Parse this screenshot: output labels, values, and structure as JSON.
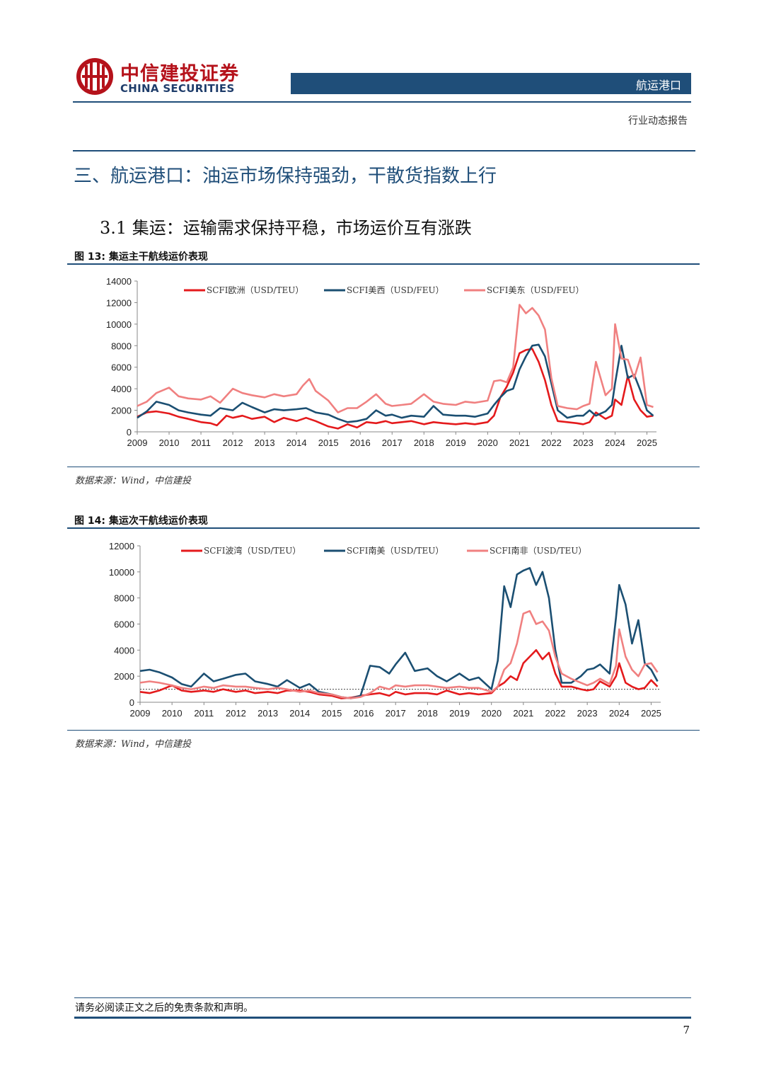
{
  "header": {
    "brand_cn": "中信建投证券",
    "brand_en": "CHINA SECURITIES",
    "sector": "航运港口",
    "report_type": "行业动态报告",
    "brand_color": "#b5121b",
    "accent_color": "#1f4e79"
  },
  "section_title": "三、航运港口：油运市场保持强劲，干散货指数上行",
  "subsection_title": "3.1 集运：运输需求保持平稳，市场运价互有涨跌",
  "figures": [
    {
      "title": "图 13: 集运主干航线运价表现",
      "source": "数据来源：Wind，中信建投"
    },
    {
      "title": "图 14: 集运次干航线运价表现",
      "source": "数据来源：Wind，中信建投"
    }
  ],
  "chart_data": [
    {
      "type": "line",
      "title": "",
      "xlabel": "",
      "ylabel": "",
      "x_ticks": [
        "2009",
        "2010",
        "2011",
        "2012",
        "2013",
        "2014",
        "2015",
        "2016",
        "2017",
        "2018",
        "2019",
        "2020",
        "2021",
        "2022",
        "2023",
        "2024",
        "2025"
      ],
      "y_ticks": [
        0,
        2000,
        4000,
        6000,
        8000,
        10000,
        12000,
        14000
      ],
      "xlim": [
        2009,
        2025.3
      ],
      "ylim": [
        0,
        14000
      ],
      "legend_position": "top",
      "series": [
        {
          "name": "SCFI欧洲（USD/TEU）",
          "color": "#e41a1c",
          "x": [
            2009,
            2009.3,
            2009.6,
            2010,
            2010.3,
            2010.6,
            2011,
            2011.3,
            2011.5,
            2011.8,
            2012,
            2012.3,
            2012.6,
            2013,
            2013.3,
            2013.6,
            2014,
            2014.3,
            2014.6,
            2015,
            2015.3,
            2015.6,
            2015.9,
            2016.2,
            2016.5,
            2016.8,
            2017,
            2017.3,
            2017.6,
            2018,
            2018.3,
            2018.6,
            2019,
            2019.3,
            2019.6,
            2020,
            2020.2,
            2020.4,
            2020.6,
            2020.8,
            2021,
            2021.2,
            2021.4,
            2021.6,
            2021.8,
            2022,
            2022.2,
            2022.5,
            2022.8,
            2023,
            2023.2,
            2023.4,
            2023.7,
            2023.9,
            2024,
            2024.2,
            2024.4,
            2024.6,
            2024.8,
            2025,
            2025.2
          ],
          "y": [
            1400,
            1800,
            1900,
            1700,
            1400,
            1200,
            900,
            800,
            600,
            1500,
            1300,
            1500,
            1200,
            1400,
            900,
            1300,
            1000,
            1300,
            1000,
            500,
            300,
            700,
            400,
            900,
            800,
            1000,
            800,
            900,
            1000,
            700,
            900,
            800,
            700,
            800,
            700,
            900,
            1500,
            3200,
            4200,
            5500,
            7300,
            7600,
            7700,
            6500,
            4800,
            2500,
            1000,
            900,
            800,
            700,
            900,
            1800,
            1200,
            1500,
            3000,
            2500,
            5200,
            3000,
            2000,
            1400,
            1500
          ]
        },
        {
          "name": "SCFI美西（USD/FEU）",
          "color": "#1b4f72",
          "x": [
            2009,
            2009.3,
            2009.6,
            2010,
            2010.3,
            2010.6,
            2011,
            2011.3,
            2011.6,
            2012,
            2012.3,
            2012.6,
            2013,
            2013.3,
            2013.6,
            2014,
            2014.3,
            2014.6,
            2015,
            2015.3,
            2015.6,
            2015.9,
            2016.2,
            2016.5,
            2016.8,
            2017,
            2017.3,
            2017.6,
            2018,
            2018.3,
            2018.6,
            2019,
            2019.3,
            2019.6,
            2020,
            2020.2,
            2020.4,
            2020.6,
            2020.8,
            2021,
            2021.2,
            2021.4,
            2021.6,
            2021.8,
            2022,
            2022.2,
            2022.5,
            2022.8,
            2023,
            2023.2,
            2023.4,
            2023.7,
            2023.9,
            2024,
            2024.2,
            2024.4,
            2024.6,
            2024.8,
            2025,
            2025.2
          ],
          "y": [
            1300,
            1900,
            2800,
            2500,
            2000,
            1800,
            1600,
            1500,
            2200,
            2000,
            2700,
            2300,
            1800,
            2100,
            2000,
            2100,
            2200,
            1800,
            1600,
            1200,
            900,
            1000,
            1200,
            2000,
            1500,
            1600,
            1300,
            1500,
            1400,
            2400,
            1600,
            1500,
            1500,
            1400,
            1700,
            2500,
            3200,
            3800,
            4000,
            5800,
            7000,
            8000,
            8100,
            7000,
            4500,
            2000,
            1300,
            1500,
            1500,
            2000,
            1500,
            1900,
            2500,
            4500,
            8000,
            5000,
            5300,
            3800,
            2000,
            1500
          ]
        },
        {
          "name": "SCFI美东（USD/FEU）",
          "color": "#f08080",
          "x": [
            2009,
            2009.3,
            2009.6,
            2010,
            2010.3,
            2010.6,
            2011,
            2011.3,
            2011.6,
            2012,
            2012.3,
            2012.6,
            2013,
            2013.3,
            2013.6,
            2014,
            2014.2,
            2014.4,
            2014.6,
            2015,
            2015.3,
            2015.6,
            2015.9,
            2016.2,
            2016.5,
            2016.8,
            2017,
            2017.3,
            2017.6,
            2018,
            2018.3,
            2018.6,
            2019,
            2019.3,
            2019.6,
            2020,
            2020.2,
            2020.4,
            2020.6,
            2020.8,
            2021,
            2021.2,
            2021.4,
            2021.6,
            2021.8,
            2022,
            2022.2,
            2022.5,
            2022.8,
            2023,
            2023.2,
            2023.4,
            2023.7,
            2023.9,
            2024,
            2024.2,
            2024.4,
            2024.6,
            2024.8,
            2025,
            2025.2
          ],
          "y": [
            2400,
            2800,
            3600,
            4100,
            3300,
            3100,
            3000,
            3300,
            2700,
            4000,
            3600,
            3400,
            3200,
            3500,
            3300,
            3500,
            4300,
            4900,
            3800,
            2900,
            1800,
            2200,
            2200,
            2800,
            3500,
            2600,
            2400,
            2500,
            2600,
            3500,
            2800,
            2600,
            2500,
            2800,
            2700,
            2900,
            4700,
            4800,
            4600,
            6000,
            11800,
            11000,
            11500,
            10800,
            9500,
            5000,
            2400,
            2200,
            2100,
            2400,
            2600,
            6500,
            3400,
            4000,
            10000,
            6800,
            6700,
            5000,
            6900,
            2500,
            2300
          ]
        }
      ]
    },
    {
      "type": "line",
      "title": "",
      "xlabel": "",
      "ylabel": "",
      "x_ticks": [
        "2009",
        "2010",
        "2011",
        "2012",
        "2013",
        "2014",
        "2015",
        "2016",
        "2017",
        "2018",
        "2019",
        "2020",
        "2021",
        "2022",
        "2023",
        "2024",
        "2025"
      ],
      "y_ticks": [
        0,
        2000,
        4000,
        6000,
        8000,
        10000,
        12000
      ],
      "xlim": [
        2009,
        2025.3
      ],
      "ylim": [
        0,
        12000
      ],
      "reference_line": 1000,
      "legend_position": "top",
      "series": [
        {
          "name": "SCFI波湾（USD/TEU）",
          "color": "#e41a1c",
          "x": [
            2009,
            2009.3,
            2009.6,
            2010,
            2010.3,
            2010.6,
            2011,
            2011.3,
            2011.6,
            2012,
            2012.3,
            2012.6,
            2013,
            2013.3,
            2013.6,
            2014,
            2014.3,
            2014.6,
            2015,
            2015.3,
            2015.6,
            2015.9,
            2016.2,
            2016.5,
            2016.8,
            2017,
            2017.3,
            2017.6,
            2018,
            2018.3,
            2018.6,
            2019,
            2019.3,
            2019.6,
            2020,
            2020.2,
            2020.4,
            2020.6,
            2020.8,
            2021,
            2021.2,
            2021.4,
            2021.6,
            2021.8,
            2022,
            2022.2,
            2022.5,
            2022.8,
            2023,
            2023.2,
            2023.4,
            2023.7,
            2023.9,
            2024,
            2024.2,
            2024.4,
            2024.6,
            2024.8,
            2025,
            2025.2
          ],
          "y": [
            800,
            700,
            900,
            1300,
            900,
            800,
            900,
            800,
            1000,
            800,
            900,
            700,
            800,
            700,
            900,
            900,
            800,
            600,
            500,
            300,
            350,
            500,
            600,
            700,
            500,
            800,
            600,
            700,
            700,
            600,
            900,
            600,
            700,
            600,
            700,
            1200,
            1500,
            2000,
            1700,
            3000,
            3500,
            4000,
            3300,
            3800,
            2200,
            1200,
            1200,
            1000,
            900,
            1000,
            1600,
            1200,
            2000,
            3000,
            1500,
            1200,
            1000,
            1100,
            1700,
            1200
          ]
        },
        {
          "name": "SCFI南美（USD/TEU）",
          "color": "#1b4f72",
          "x": [
            2009,
            2009.3,
            2009.6,
            2010,
            2010.3,
            2010.6,
            2011,
            2011.3,
            2011.6,
            2012,
            2012.3,
            2012.6,
            2013,
            2013.3,
            2013.6,
            2014,
            2014.3,
            2014.6,
            2015,
            2015.3,
            2015.6,
            2015.9,
            2016.2,
            2016.5,
            2016.8,
            2017,
            2017.3,
            2017.6,
            2018,
            2018.3,
            2018.6,
            2019,
            2019.3,
            2019.6,
            2020,
            2020.2,
            2020.4,
            2020.6,
            2020.8,
            2021,
            2021.2,
            2021.4,
            2021.6,
            2021.8,
            2022,
            2022.2,
            2022.5,
            2022.8,
            2023,
            2023.2,
            2023.4,
            2023.7,
            2023.9,
            2024,
            2024.2,
            2024.4,
            2024.6,
            2024.8,
            2025,
            2025.2
          ],
          "y": [
            2400,
            2500,
            2300,
            1900,
            1400,
            1200,
            2200,
            1600,
            1800,
            2100,
            2200,
            1600,
            1400,
            1200,
            1700,
            1100,
            1400,
            800,
            600,
            400,
            300,
            500,
            2800,
            2700,
            2200,
            2900,
            3800,
            2400,
            2600,
            2000,
            1600,
            2200,
            1700,
            1900,
            1000,
            3200,
            8900,
            7300,
            9800,
            10100,
            10300,
            9000,
            10000,
            8000,
            4000,
            1500,
            1500,
            2000,
            2500,
            2600,
            2900,
            2200,
            6500,
            9000,
            7500,
            4500,
            6300,
            3000,
            2500,
            1600
          ]
        },
        {
          "name": "SCFI南非（USD/TEU）",
          "color": "#f08080",
          "x": [
            2009,
            2009.3,
            2009.6,
            2010,
            2010.3,
            2010.6,
            2011,
            2011.3,
            2011.6,
            2012,
            2012.3,
            2012.6,
            2013,
            2013.3,
            2013.6,
            2014,
            2014.3,
            2014.6,
            2015,
            2015.3,
            2015.6,
            2015.9,
            2016.2,
            2016.5,
            2016.8,
            2017,
            2017.3,
            2017.6,
            2018,
            2018.3,
            2018.6,
            2019,
            2019.3,
            2019.6,
            2020,
            2020.2,
            2020.4,
            2020.6,
            2020.8,
            2021,
            2021.2,
            2021.4,
            2021.6,
            2021.8,
            2022,
            2022.2,
            2022.5,
            2022.8,
            2023,
            2023.2,
            2023.4,
            2023.7,
            2023.9,
            2024,
            2024.2,
            2024.4,
            2024.6,
            2024.8,
            2025,
            2025.2
          ],
          "y": [
            1500,
            1600,
            1500,
            1300,
            1100,
            1000,
            1200,
            1100,
            1300,
            1200,
            1200,
            1100,
            1000,
            1100,
            1000,
            800,
            900,
            700,
            600,
            400,
            300,
            400,
            700,
            1200,
            1000,
            1300,
            1200,
            1300,
            1300,
            1200,
            1100,
            1200,
            1100,
            1100,
            800,
            1200,
            2500,
            3000,
            4500,
            6800,
            7000,
            6000,
            6200,
            5500,
            3500,
            2200,
            1800,
            1500,
            1300,
            1500,
            1800,
            1400,
            2800,
            5600,
            3500,
            2500,
            2000,
            2900,
            3000,
            2300
          ]
        }
      ]
    }
  ],
  "disclaimer": "请务必阅读正文之后的免责条款和声明。",
  "page_number": "7"
}
